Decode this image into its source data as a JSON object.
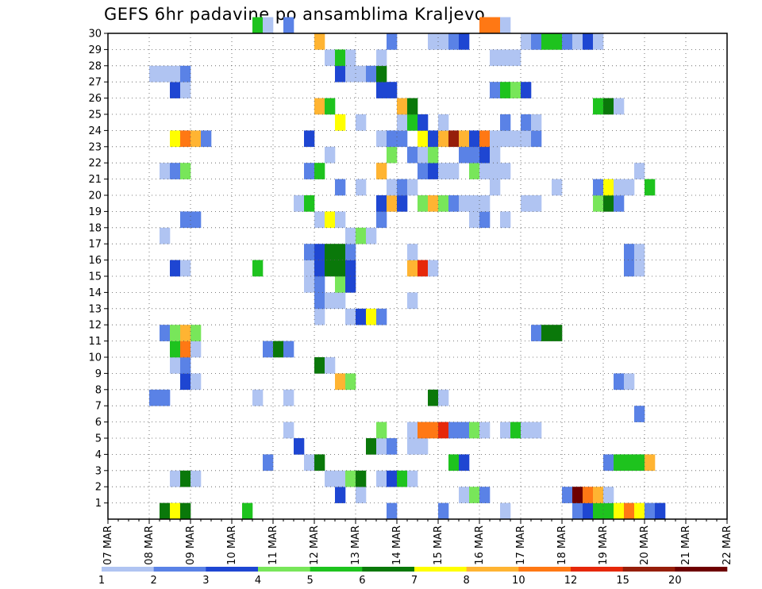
{
  "chart_data": {
    "type": "heatmap",
    "title": "GEFS 6hr padavine po ansamblima Kraljevo",
    "xlabel": "",
    "ylabel": "",
    "x_tick_labels": [
      "07 MAR",
      "08 MAR",
      "09 MAR",
      "10 MAR",
      "11 MAR",
      "12 MAR",
      "13 MAR",
      "14 MAR",
      "15 MAR",
      "16 MAR",
      "17 MAR",
      "18 MAR",
      "19 MAR",
      "20 MAR",
      "21 MAR",
      "22 MAR"
    ],
    "x_units": "6-hour steps from 07 MAR 00Z",
    "x_range": [
      0,
      60
    ],
    "y_tick_labels": [
      "1",
      "2",
      "3",
      "4",
      "5",
      "6",
      "7",
      "8",
      "9",
      "10",
      "11",
      "12",
      "13",
      "14",
      "15",
      "16",
      "17",
      "18",
      "19",
      "20",
      "21",
      "22",
      "23",
      "24",
      "25",
      "26",
      "27",
      "28",
      "29",
      "30"
    ],
    "y_range": [
      0,
      30
    ],
    "grid": true,
    "colorbar": {
      "placement": "bottom",
      "labels": [
        "1",
        "2",
        "3",
        "4",
        "5",
        "6",
        "7",
        "8",
        "10",
        "12",
        "15",
        "20"
      ],
      "colors": [
        "#b0c4f2",
        "#5a82e6",
        "#1e46d2",
        "#78e65a",
        "#1ec31e",
        "#0a780a",
        "#ffff00",
        "#ffb432",
        "#ff7814",
        "#e6280a",
        "#961e0a",
        "#6e0000"
      ]
    },
    "cells": [
      [
        5,
        0,
        "#0a780a"
      ],
      [
        6,
        0,
        "#ffff00"
      ],
      [
        7,
        0,
        "#0a780a"
      ],
      [
        13,
        0,
        "#1ec31e"
      ],
      [
        27,
        0,
        "#5a82e6"
      ],
      [
        32,
        0,
        "#5a82e6"
      ],
      [
        38,
        0,
        "#b0c4f2"
      ],
      [
        45,
        0,
        "#5a82e6"
      ],
      [
        46,
        0,
        "#1e46d2"
      ],
      [
        47,
        0,
        "#1ec31e"
      ],
      [
        48,
        0,
        "#1ec31e"
      ],
      [
        49,
        0,
        "#ffff00"
      ],
      [
        50,
        0,
        "#ff7814"
      ],
      [
        51,
        0,
        "#ffff00"
      ],
      [
        52,
        0,
        "#5a82e6"
      ],
      [
        53,
        0,
        "#1e46d2"
      ],
      [
        44,
        1,
        "#5a82e6"
      ],
      [
        45,
        1,
        "#6e0000"
      ],
      [
        46,
        1,
        "#ff7814"
      ],
      [
        47,
        1,
        "#ffb432"
      ],
      [
        48,
        1,
        "#b0c4f2"
      ],
      [
        22,
        1,
        "#1e46d2"
      ],
      [
        24,
        1,
        "#b0c4f2"
      ],
      [
        34,
        1,
        "#b0c4f2"
      ],
      [
        35,
        1,
        "#78e65a"
      ],
      [
        36,
        1,
        "#5a82e6"
      ],
      [
        6,
        2,
        "#b0c4f2"
      ],
      [
        7,
        2,
        "#0a780a"
      ],
      [
        8,
        2,
        "#b0c4f2"
      ],
      [
        21,
        2,
        "#b0c4f2"
      ],
      [
        22,
        2,
        "#b0c4f2"
      ],
      [
        23,
        2,
        "#78e65a"
      ],
      [
        24,
        2,
        "#0a780a"
      ],
      [
        26,
        2,
        "#b0c4f2"
      ],
      [
        27,
        2,
        "#1e46d2"
      ],
      [
        28,
        2,
        "#1ec31e"
      ],
      [
        29,
        2,
        "#b0c4f2"
      ],
      [
        15,
        3,
        "#5a82e6"
      ],
      [
        19,
        3,
        "#b0c4f2"
      ],
      [
        20,
        3,
        "#0a780a"
      ],
      [
        33,
        3,
        "#1ec31e"
      ],
      [
        34,
        3,
        "#1e46d2"
      ],
      [
        48,
        3,
        "#5a82e6"
      ],
      [
        49,
        3,
        "#1ec31e"
      ],
      [
        50,
        3,
        "#1ec31e"
      ],
      [
        51,
        3,
        "#1ec31e"
      ],
      [
        52,
        3,
        "#ffb432"
      ],
      [
        18,
        4,
        "#1e46d2"
      ],
      [
        25,
        4,
        "#0a780a"
      ],
      [
        26,
        4,
        "#b0c4f2"
      ],
      [
        27,
        4,
        "#5a82e6"
      ],
      [
        29,
        4,
        "#b0c4f2"
      ],
      [
        30,
        4,
        "#b0c4f2"
      ],
      [
        17,
        5,
        "#b0c4f2"
      ],
      [
        26,
        5,
        "#78e65a"
      ],
      [
        29,
        5,
        "#b0c4f2"
      ],
      [
        30,
        5,
        "#ff7814"
      ],
      [
        31,
        5,
        "#ff7814"
      ],
      [
        32,
        5,
        "#e6280a"
      ],
      [
        33,
        5,
        "#5a82e6"
      ],
      [
        34,
        5,
        "#5a82e6"
      ],
      [
        35,
        5,
        "#78e65a"
      ],
      [
        36,
        5,
        "#b0c4f2"
      ],
      [
        38,
        5,
        "#b0c4f2"
      ],
      [
        39,
        5,
        "#1ec31e"
      ],
      [
        40,
        5,
        "#b0c4f2"
      ],
      [
        41,
        5,
        "#b0c4f2"
      ],
      [
        51,
        6,
        "#5a82e6"
      ],
      [
        4,
        7,
        "#5a82e6"
      ],
      [
        5,
        7,
        "#5a82e6"
      ],
      [
        14,
        7,
        "#b0c4f2"
      ],
      [
        17,
        7,
        "#b0c4f2"
      ],
      [
        31,
        7,
        "#0a780a"
      ],
      [
        32,
        7,
        "#b0c4f2"
      ],
      [
        7,
        8,
        "#1e46d2"
      ],
      [
        8,
        8,
        "#b0c4f2"
      ],
      [
        22,
        8,
        "#ffb432"
      ],
      [
        23,
        8,
        "#78e65a"
      ],
      [
        49,
        8,
        "#5a82e6"
      ],
      [
        50,
        8,
        "#b0c4f2"
      ],
      [
        6,
        9,
        "#b0c4f2"
      ],
      [
        7,
        9,
        "#5a82e6"
      ],
      [
        20,
        9,
        "#0a780a"
      ],
      [
        21,
        9,
        "#b0c4f2"
      ],
      [
        6,
        10,
        "#1ec31e"
      ],
      [
        7,
        10,
        "#ff7814"
      ],
      [
        8,
        10,
        "#b0c4f2"
      ],
      [
        15,
        10,
        "#5a82e6"
      ],
      [
        16,
        10,
        "#0a780a"
      ],
      [
        17,
        10,
        "#5a82e6"
      ],
      [
        5,
        11,
        "#5a82e6"
      ],
      [
        6,
        11,
        "#78e65a"
      ],
      [
        7,
        11,
        "#ffb432"
      ],
      [
        8,
        11,
        "#78e65a"
      ],
      [
        41,
        11,
        "#5a82e6"
      ],
      [
        42,
        11,
        "#0a780a"
      ],
      [
        43,
        11,
        "#0a780a"
      ],
      [
        20,
        12,
        "#b0c4f2"
      ],
      [
        23,
        12,
        "#b0c4f2"
      ],
      [
        24,
        12,
        "#1e46d2"
      ],
      [
        25,
        12,
        "#ffff00"
      ],
      [
        26,
        12,
        "#5a82e6"
      ],
      [
        20,
        13,
        "#5a82e6"
      ],
      [
        21,
        13,
        "#b0c4f2"
      ],
      [
        22,
        13,
        "#b0c4f2"
      ],
      [
        29,
        13,
        "#b0c4f2"
      ],
      [
        19,
        14,
        "#b0c4f2"
      ],
      [
        20,
        14,
        "#5a82e6"
      ],
      [
        22,
        14,
        "#78e65a"
      ],
      [
        23,
        14,
        "#1e46d2"
      ],
      [
        6,
        15,
        "#1e46d2"
      ],
      [
        7,
        15,
        "#b0c4f2"
      ],
      [
        14,
        15,
        "#1ec31e"
      ],
      [
        19,
        15,
        "#b0c4f2"
      ],
      [
        20,
        15,
        "#1e46d2"
      ],
      [
        21,
        15,
        "#0a780a"
      ],
      [
        22,
        15,
        "#0a780a"
      ],
      [
        23,
        15,
        "#1e46d2"
      ],
      [
        29,
        15,
        "#ffb432"
      ],
      [
        30,
        15,
        "#e6280a"
      ],
      [
        31,
        15,
        "#b0c4f2"
      ],
      [
        50,
        15,
        "#5a82e6"
      ],
      [
        51,
        15,
        "#b0c4f2"
      ],
      [
        19,
        16,
        "#5a82e6"
      ],
      [
        20,
        16,
        "#1e46d2"
      ],
      [
        21,
        16,
        "#0a780a"
      ],
      [
        22,
        16,
        "#0a780a"
      ],
      [
        23,
        16,
        "#5a82e6"
      ],
      [
        29,
        16,
        "#b0c4f2"
      ],
      [
        50,
        16,
        "#5a82e6"
      ],
      [
        51,
        16,
        "#b0c4f2"
      ],
      [
        5,
        17,
        "#b0c4f2"
      ],
      [
        23,
        17,
        "#b0c4f2"
      ],
      [
        24,
        17,
        "#78e65a"
      ],
      [
        25,
        17,
        "#b0c4f2"
      ],
      [
        7,
        18,
        "#5a82e6"
      ],
      [
        8,
        18,
        "#5a82e6"
      ],
      [
        20,
        18,
        "#b0c4f2"
      ],
      [
        21,
        18,
        "#ffff00"
      ],
      [
        22,
        18,
        "#b0c4f2"
      ],
      [
        26,
        18,
        "#5a82e6"
      ],
      [
        35,
        18,
        "#b0c4f2"
      ],
      [
        36,
        18,
        "#5a82e6"
      ],
      [
        38,
        18,
        "#b0c4f2"
      ],
      [
        18,
        19,
        "#b0c4f2"
      ],
      [
        19,
        19,
        "#1ec31e"
      ],
      [
        26,
        19,
        "#1e46d2"
      ],
      [
        27,
        19,
        "#ffb432"
      ],
      [
        28,
        19,
        "#1e46d2"
      ],
      [
        30,
        19,
        "#78e65a"
      ],
      [
        31,
        19,
        "#ffb432"
      ],
      [
        32,
        19,
        "#78e65a"
      ],
      [
        33,
        19,
        "#5a82e6"
      ],
      [
        34,
        19,
        "#b0c4f2"
      ],
      [
        35,
        19,
        "#b0c4f2"
      ],
      [
        36,
        19,
        "#b0c4f2"
      ],
      [
        40,
        19,
        "#b0c4f2"
      ],
      [
        41,
        19,
        "#b0c4f2"
      ],
      [
        47,
        19,
        "#78e65a"
      ],
      [
        48,
        19,
        "#0a780a"
      ],
      [
        49,
        19,
        "#5a82e6"
      ],
      [
        22,
        20,
        "#5a82e6"
      ],
      [
        24,
        20,
        "#b0c4f2"
      ],
      [
        27,
        20,
        "#b0c4f2"
      ],
      [
        28,
        20,
        "#5a82e6"
      ],
      [
        29,
        20,
        "#b0c4f2"
      ],
      [
        37,
        20,
        "#b0c4f2"
      ],
      [
        43,
        20,
        "#b0c4f2"
      ],
      [
        47,
        20,
        "#5a82e6"
      ],
      [
        48,
        20,
        "#ffff00"
      ],
      [
        49,
        20,
        "#b0c4f2"
      ],
      [
        50,
        20,
        "#b0c4f2"
      ],
      [
        52,
        20,
        "#1ec31e"
      ],
      [
        5,
        21,
        "#b0c4f2"
      ],
      [
        6,
        21,
        "#5a82e6"
      ],
      [
        7,
        21,
        "#78e65a"
      ],
      [
        19,
        21,
        "#5a82e6"
      ],
      [
        20,
        21,
        "#1ec31e"
      ],
      [
        26,
        21,
        "#ffb432"
      ],
      [
        30,
        21,
        "#5a82e6"
      ],
      [
        31,
        21,
        "#1e46d2"
      ],
      [
        32,
        21,
        "#b0c4f2"
      ],
      [
        33,
        21,
        "#b0c4f2"
      ],
      [
        35,
        21,
        "#78e65a"
      ],
      [
        36,
        21,
        "#b0c4f2"
      ],
      [
        37,
        21,
        "#b0c4f2"
      ],
      [
        38,
        21,
        "#b0c4f2"
      ],
      [
        51,
        21,
        "#b0c4f2"
      ],
      [
        21,
        22,
        "#b0c4f2"
      ],
      [
        27,
        22,
        "#78e65a"
      ],
      [
        29,
        22,
        "#5a82e6"
      ],
      [
        30,
        22,
        "#b0c4f2"
      ],
      [
        31,
        22,
        "#78e65a"
      ],
      [
        34,
        22,
        "#5a82e6"
      ],
      [
        35,
        22,
        "#5a82e6"
      ],
      [
        36,
        22,
        "#1e46d2"
      ],
      [
        37,
        22,
        "#b0c4f2"
      ],
      [
        6,
        23,
        "#ffff00"
      ],
      [
        7,
        23,
        "#ff7814"
      ],
      [
        8,
        23,
        "#ffb432"
      ],
      [
        9,
        23,
        "#5a82e6"
      ],
      [
        19,
        23,
        "#1e46d2"
      ],
      [
        26,
        23,
        "#b0c4f2"
      ],
      [
        27,
        23,
        "#5a82e6"
      ],
      [
        28,
        23,
        "#5a82e6"
      ],
      [
        30,
        23,
        "#ffff00"
      ],
      [
        31,
        23,
        "#1e46d2"
      ],
      [
        32,
        23,
        "#ffb432"
      ],
      [
        33,
        23,
        "#961e0a"
      ],
      [
        34,
        23,
        "#ffb432"
      ],
      [
        35,
        23,
        "#1e46d2"
      ],
      [
        36,
        23,
        "#ff7814"
      ],
      [
        37,
        23,
        "#b0c4f2"
      ],
      [
        38,
        23,
        "#b0c4f2"
      ],
      [
        39,
        23,
        "#b0c4f2"
      ],
      [
        40,
        23,
        "#b0c4f2"
      ],
      [
        41,
        23,
        "#5a82e6"
      ],
      [
        22,
        24,
        "#ffff00"
      ],
      [
        24,
        24,
        "#b0c4f2"
      ],
      [
        28,
        24,
        "#b0c4f2"
      ],
      [
        29,
        24,
        "#1ec31e"
      ],
      [
        30,
        24,
        "#1e46d2"
      ],
      [
        32,
        24,
        "#b0c4f2"
      ],
      [
        38,
        24,
        "#5a82e6"
      ],
      [
        40,
        24,
        "#5a82e6"
      ],
      [
        41,
        24,
        "#b0c4f2"
      ],
      [
        20,
        25,
        "#ffb432"
      ],
      [
        21,
        25,
        "#1ec31e"
      ],
      [
        28,
        25,
        "#ffb432"
      ],
      [
        29,
        25,
        "#0a780a"
      ],
      [
        47,
        25,
        "#1ec31e"
      ],
      [
        48,
        25,
        "#0a780a"
      ],
      [
        49,
        25,
        "#b0c4f2"
      ],
      [
        6,
        26,
        "#1e46d2"
      ],
      [
        7,
        26,
        "#b0c4f2"
      ],
      [
        26,
        26,
        "#1e46d2"
      ],
      [
        27,
        26,
        "#1e46d2"
      ],
      [
        37,
        26,
        "#5a82e6"
      ],
      [
        38,
        26,
        "#1ec31e"
      ],
      [
        39,
        26,
        "#78e65a"
      ],
      [
        40,
        26,
        "#1e46d2"
      ],
      [
        4,
        27,
        "#b0c4f2"
      ],
      [
        5,
        27,
        "#b0c4f2"
      ],
      [
        6,
        27,
        "#b0c4f2"
      ],
      [
        7,
        27,
        "#5a82e6"
      ],
      [
        22,
        27,
        "#1e46d2"
      ],
      [
        23,
        27,
        "#b0c4f2"
      ],
      [
        24,
        27,
        "#b0c4f2"
      ],
      [
        25,
        27,
        "#5a82e6"
      ],
      [
        26,
        27,
        "#0a780a"
      ],
      [
        21,
        28,
        "#b0c4f2"
      ],
      [
        22,
        28,
        "#1ec31e"
      ],
      [
        23,
        28,
        "#b0c4f2"
      ],
      [
        26,
        28,
        "#b0c4f2"
      ],
      [
        37,
        28,
        "#b0c4f2"
      ],
      [
        38,
        28,
        "#b0c4f2"
      ],
      [
        39,
        28,
        "#b0c4f2"
      ],
      [
        20,
        29,
        "#ffb432"
      ],
      [
        27,
        29,
        "#5a82e6"
      ],
      [
        31,
        29,
        "#b0c4f2"
      ],
      [
        32,
        29,
        "#b0c4f2"
      ],
      [
        33,
        29,
        "#5a82e6"
      ],
      [
        34,
        29,
        "#1e46d2"
      ],
      [
        40,
        29,
        "#b0c4f2"
      ],
      [
        41,
        29,
        "#5a82e6"
      ],
      [
        42,
        29,
        "#1ec31e"
      ],
      [
        43,
        29,
        "#1ec31e"
      ],
      [
        44,
        29,
        "#5a82e6"
      ],
      [
        45,
        29,
        "#b0c4f2"
      ],
      [
        46,
        29,
        "#1e46d2"
      ],
      [
        47,
        29,
        "#b0c4f2"
      ],
      [
        14,
        30,
        "#1ec31e"
      ],
      [
        15,
        30,
        "#b0c4f2"
      ],
      [
        17,
        30,
        "#5a82e6"
      ],
      [
        36,
        30,
        "#ff7814"
      ],
      [
        37,
        30,
        "#ff7814"
      ],
      [
        38,
        30,
        "#b0c4f2"
      ]
    ]
  }
}
